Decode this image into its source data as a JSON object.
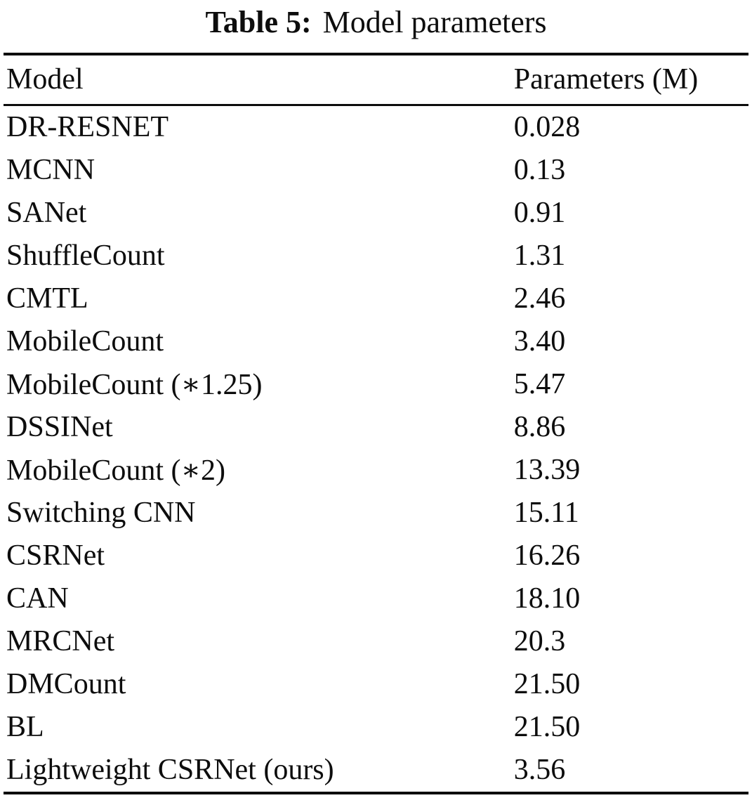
{
  "caption": {
    "label": "Table 5:",
    "title": "Model parameters"
  },
  "table": {
    "headers": {
      "model": "Model",
      "params": "Parameters (M)"
    },
    "rows": [
      {
        "model": "DR-RESNET",
        "params": "0.028"
      },
      {
        "model": "MCNN",
        "params": "0.13"
      },
      {
        "model": "SANet",
        "params": "0.91"
      },
      {
        "model": "ShuffleCount",
        "params": "1.31"
      },
      {
        "model": "CMTL",
        "params": "2.46"
      },
      {
        "model": "MobileCount",
        "params": "3.40"
      },
      {
        "model": "MobileCount (∗1.25)",
        "params": "5.47"
      },
      {
        "model": "DSSINet",
        "params": "8.86"
      },
      {
        "model": "MobileCount (∗2)",
        "params": "13.39"
      },
      {
        "model": "Switching CNN",
        "params": "15.11"
      },
      {
        "model": "CSRNet",
        "params": "16.26"
      },
      {
        "model": "CAN",
        "params": "18.10"
      },
      {
        "model": "MRCNet",
        "params": "20.3"
      },
      {
        "model": "DMCount",
        "params": "21.50"
      },
      {
        "model": "BL",
        "params": "21.50"
      },
      {
        "model": "Lightweight CSRNet (ours)",
        "params": "3.56"
      }
    ]
  },
  "colors": {
    "text": "#0d0d0d",
    "rule": "#0d0d0d",
    "background": "#ffffff"
  }
}
